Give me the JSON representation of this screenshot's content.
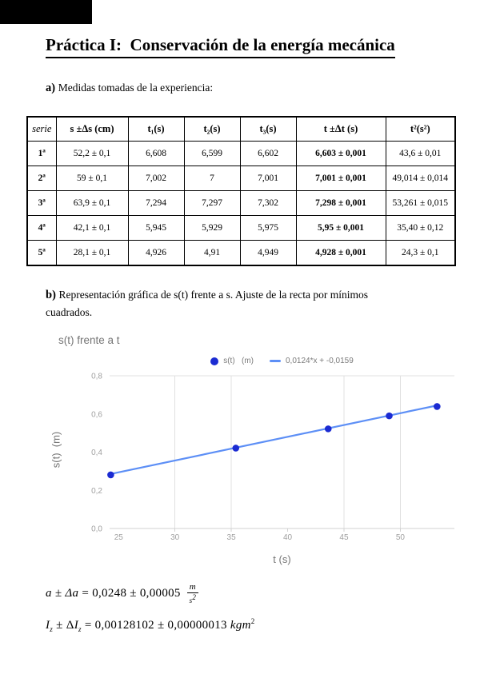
{
  "page": {
    "title": "Práctica I:  Conservación de la energía mecánica",
    "section_a_label": "a) ",
    "section_a_text": "Medidas tomadas de la experiencia:",
    "section_b_label": "b) ",
    "section_b_line1": "Representación gráfica de s(t) frente a s. Ajuste de la recta por mínimos",
    "section_b_line2": "cuadrados."
  },
  "table": {
    "headers": [
      "serie",
      "s ±Δs (cm)",
      "t₁(s)",
      "t₂(s)",
      "t₃(s)",
      "t ±Δt (s)",
      "t²(s²)"
    ],
    "rows": [
      {
        "serie": "1ª",
        "s": "52,2 ± 0,1",
        "t1": "6,608",
        "t2": "6,599",
        "t3": "6,602",
        "t": "6,603 ± 0,001",
        "t2s": "43,6 ± 0,01"
      },
      {
        "serie": "2ª",
        "s": "59 ± 0,1",
        "t1": "7,002",
        "t2": "7",
        "t3": "7,001",
        "t": "7,001 ± 0,001",
        "t2s": "49,014 ± 0,014"
      },
      {
        "serie": "3ª",
        "s": "63,9 ± 0,1",
        "t1": "7,294",
        "t2": "7,297",
        "t3": "7,302",
        "t": "7,298 ± 0,001",
        "t2s": "53,261 ± 0,015"
      },
      {
        "serie": "4ª",
        "s": "42,1 ± 0,1",
        "t1": "5,945",
        "t2": "5,929",
        "t3": "5,975",
        "t": "5,95 ± 0,001",
        "t2s": "35,40 ± 0,12"
      },
      {
        "serie": "5ª",
        "s": "28,1 ± 0,1",
        "t1": "4,926",
        "t2": "4,91",
        "t3": "4,949",
        "t": "4,928 ± 0,001",
        "t2s": "24,3 ± 0,1"
      }
    ]
  },
  "chart_data": {
    "type": "scatter",
    "title": "s(t) frente a t",
    "xlabel": "t (s)",
    "ylabel": "s(t)  (m)",
    "legend": [
      {
        "label": "s(t)   (m)",
        "swatch": "point"
      },
      {
        "label": "0,0124*x + -0,0159",
        "swatch": "line"
      }
    ],
    "points": [
      {
        "x": 24.3,
        "y": 0.281
      },
      {
        "x": 35.4,
        "y": 0.421
      },
      {
        "x": 43.6,
        "y": 0.522
      },
      {
        "x": 49.014,
        "y": 0.59
      },
      {
        "x": 53.261,
        "y": 0.639
      }
    ],
    "trendline": {
      "slope": 0.0124,
      "intercept": -0.0159
    },
    "xlim": [
      24.2,
      54.8
    ],
    "ylim": [
      0,
      0.8
    ],
    "xticks": [
      25,
      30,
      35,
      40,
      45,
      50
    ],
    "xtick_labels": [
      "25",
      "30",
      "35",
      "40",
      "45",
      "50"
    ],
    "yticks": [
      0,
      0.2,
      0.4,
      0.6,
      0.8
    ],
    "ytick_labels": [
      "0,0",
      "0,2",
      "0,4",
      "0,6",
      "0,8"
    ],
    "x_gridlines": [
      30,
      35,
      45,
      50
    ],
    "x_tick_marks": [
      30,
      35,
      40,
      45,
      50
    ],
    "legend_position": "top",
    "grid": "partial",
    "colors": {
      "point": "#1b2bd2",
      "trendline": "#5d8ff6",
      "gridline": "#e0e0e0",
      "axis_line": "#d2d2d2",
      "tick_label": "#a0a0a0",
      "axis_title": "#757575"
    }
  },
  "formulas": {
    "a": {
      "lhs": "a ± Δa",
      "eq": " = 0,0248 ± 0,00005 ",
      "unit_num": "m",
      "unit_den_base": "s",
      "unit_den_exp": "2"
    },
    "iz": {
      "var1": "I",
      "sub1": "z",
      "mid": " ± Δ",
      "var2": "I",
      "sub2": "z",
      "eq": " = 0,00128102 ± 0,00000013 ",
      "unit": "kgm",
      "unit_exp": "2"
    }
  }
}
